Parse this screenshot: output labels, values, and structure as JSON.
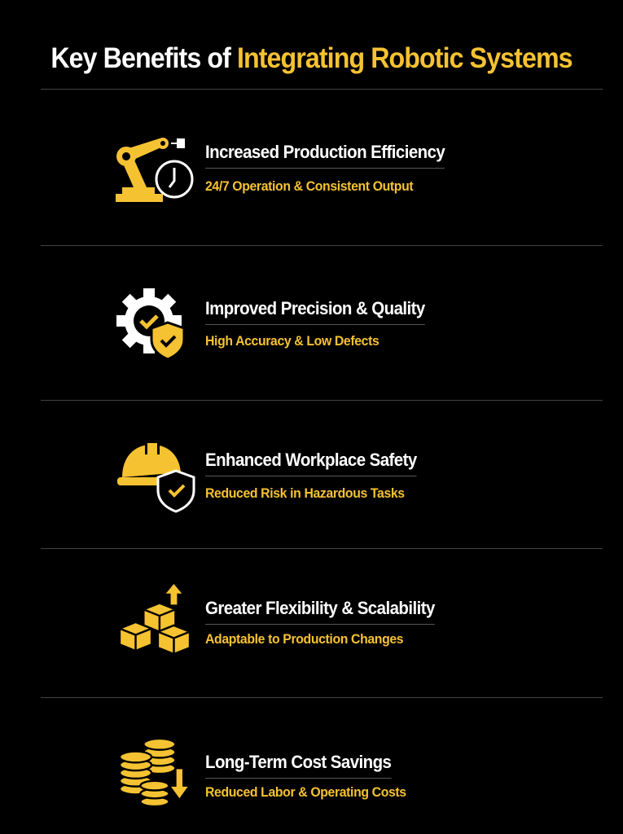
{
  "title": {
    "part1": "Key Benefits of ",
    "part2": "Integrating Robotic Systems"
  },
  "colors": {
    "accent": "#f5c232",
    "background": "#000000",
    "text": "#ffffff"
  },
  "items": [
    {
      "icon": "robot-arm-clock-icon",
      "heading": "Increased Production Efficiency",
      "subheading": "24/7 Operation & Consistent Output"
    },
    {
      "icon": "gear-shield-check-icon",
      "heading": "Improved Precision & Quality",
      "subheading": "High Accuracy & Low Defects"
    },
    {
      "icon": "hardhat-shield-check-icon",
      "heading": "Enhanced Workplace Safety",
      "subheading": "Reduced Risk in Hazardous Tasks"
    },
    {
      "icon": "boxes-arrow-up-icon",
      "heading": "Greater Flexibility & Scalability",
      "subheading": "Adaptable to Production Changes"
    },
    {
      "icon": "coins-arrow-down-icon",
      "heading": "Long-Term Cost Savings",
      "subheading": "Reduced Labor & Operating Costs"
    }
  ]
}
